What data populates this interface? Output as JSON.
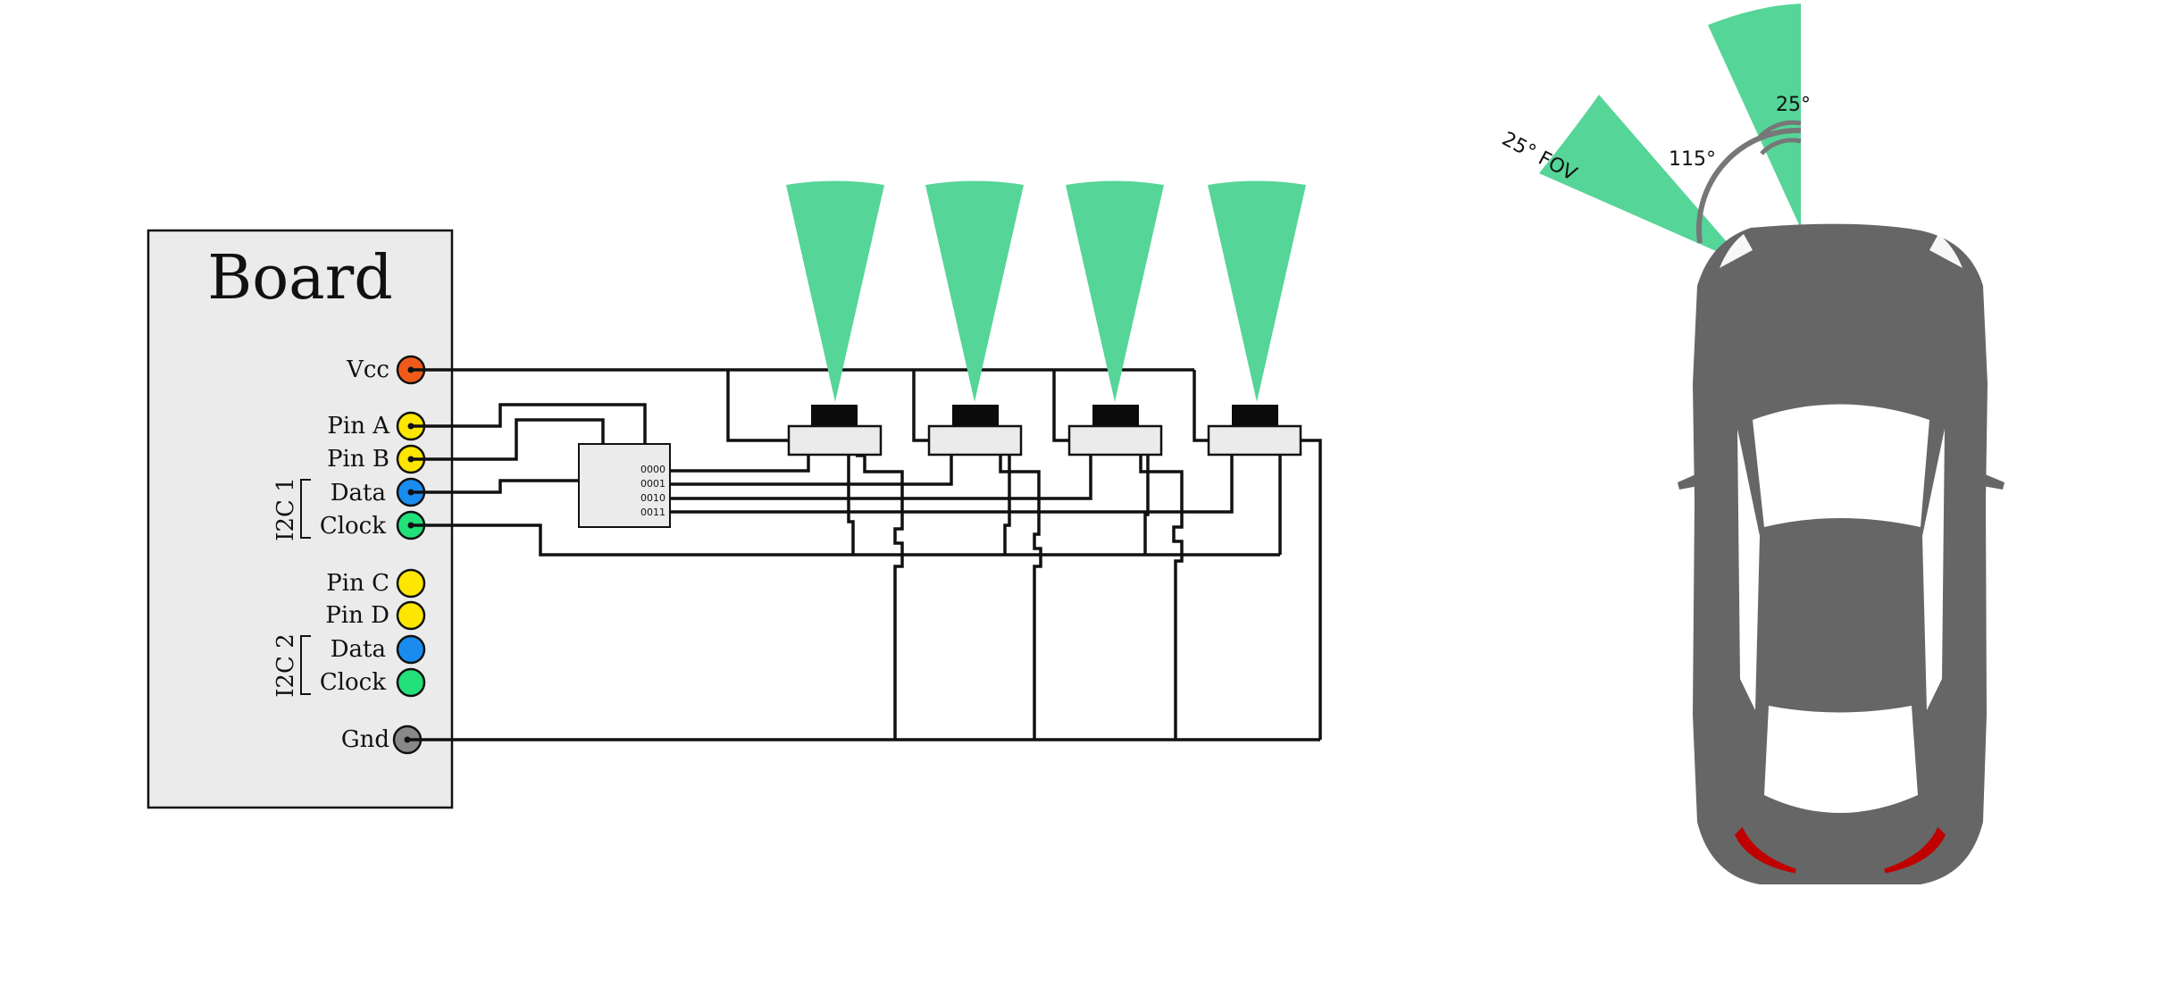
{
  "board": {
    "title": "Board",
    "pins": {
      "vcc": "Vcc",
      "pin_a": "Pin A",
      "pin_b": "Pin B",
      "i2c1_data": "Data",
      "i2c1_clock": "Clock",
      "pin_c": "Pin C",
      "pin_d": "Pin D",
      "i2c2_data": "Data",
      "i2c2_clock": "Clock",
      "gnd": "Gnd"
    },
    "groups": {
      "i2c1": "I2C 1",
      "i2c2": "I2C 2"
    }
  },
  "mux": {
    "codes": [
      "0000",
      "0001",
      "0010",
      "0011"
    ]
  },
  "sensors": {
    "count": 4,
    "fov_color": "#56d598"
  },
  "car_diagram": {
    "fov_label": "25° FOV",
    "angle_between": "115°",
    "angle_fov": "25°"
  },
  "colors": {
    "vcc": "#f05a1a",
    "pin_yellow": "#fde600",
    "data_blue": "#1a8cf0",
    "clock_green": "#22e07a",
    "gnd_gray": "#888888",
    "board_fill": "#ebebeb",
    "car_body": "#666666",
    "tail_light": "#c00000",
    "fov_green": "#56d598"
  }
}
